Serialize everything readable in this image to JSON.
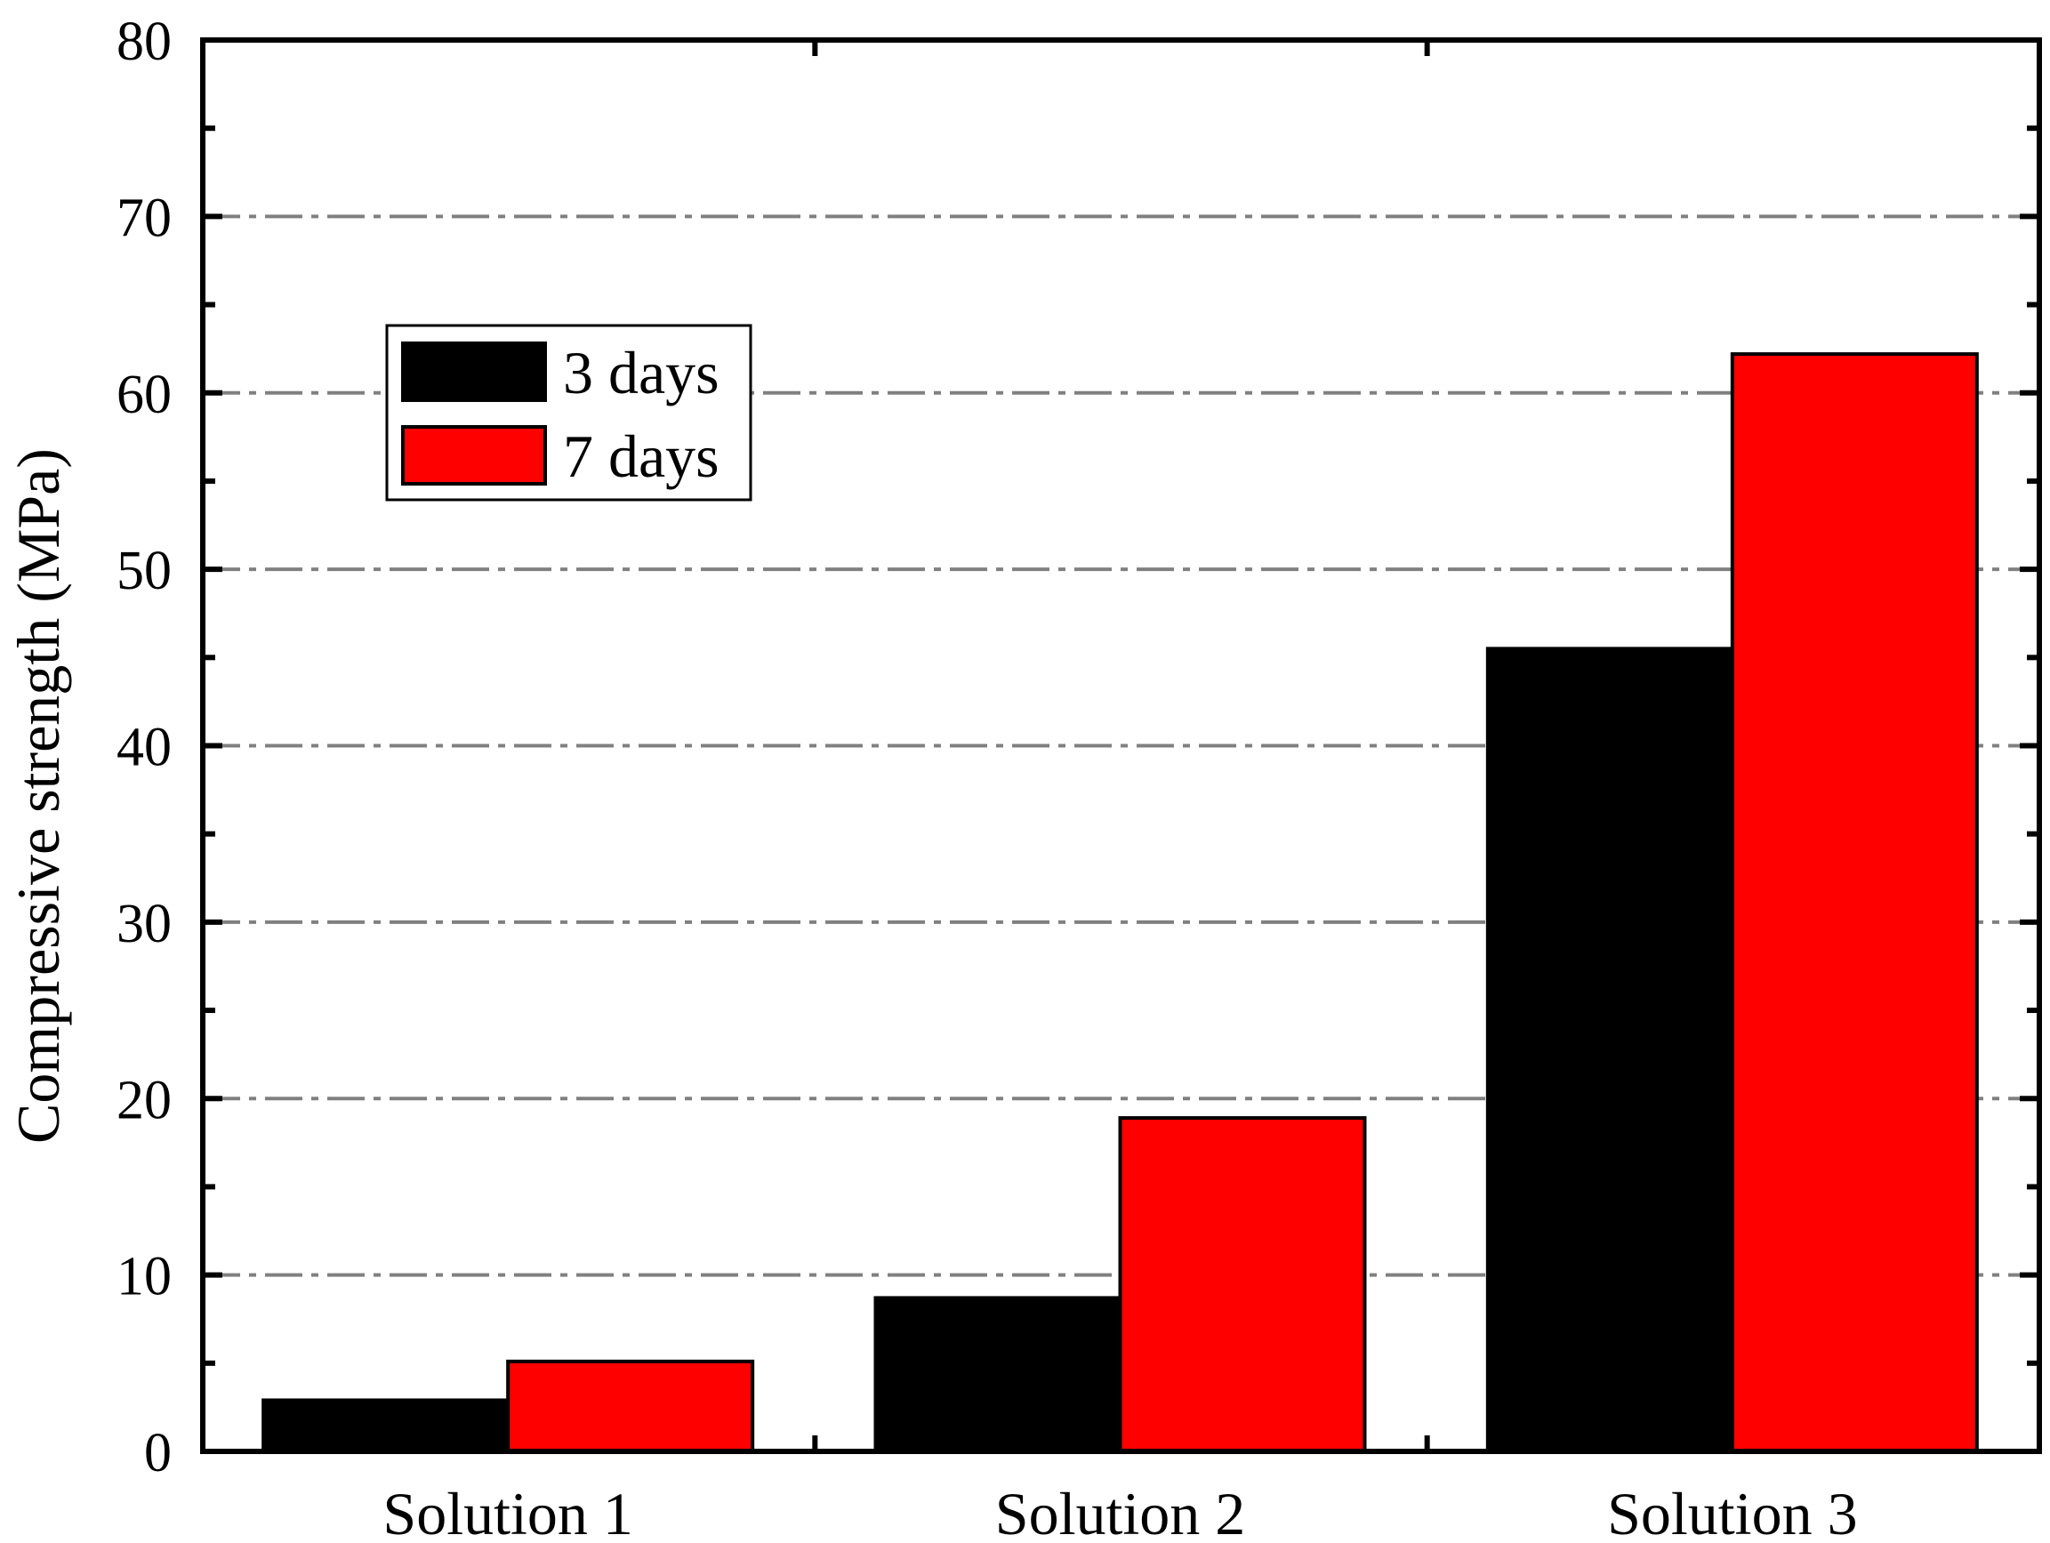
{
  "chart_data": {
    "type": "bar",
    "title": "",
    "xlabel": "",
    "ylabel": "Compressive strength (MPa)",
    "ylim": [
      0,
      80
    ],
    "yticks": [
      "0",
      "10",
      "20",
      "30",
      "40",
      "50",
      "60",
      "70",
      "80"
    ],
    "categories": [
      "Solution 1",
      "Solution 2",
      "Solution 3"
    ],
    "series": [
      {
        "name": "3 days",
        "values": [
          2.9,
          8.7,
          45.5
        ],
        "color": "#000000"
      },
      {
        "name": "7 days",
        "values": [
          5.1,
          18.9,
          62.2
        ],
        "color": "#ff0000"
      }
    ],
    "grid": "horizontal dash-dot",
    "legend_position": "upper-left"
  }
}
